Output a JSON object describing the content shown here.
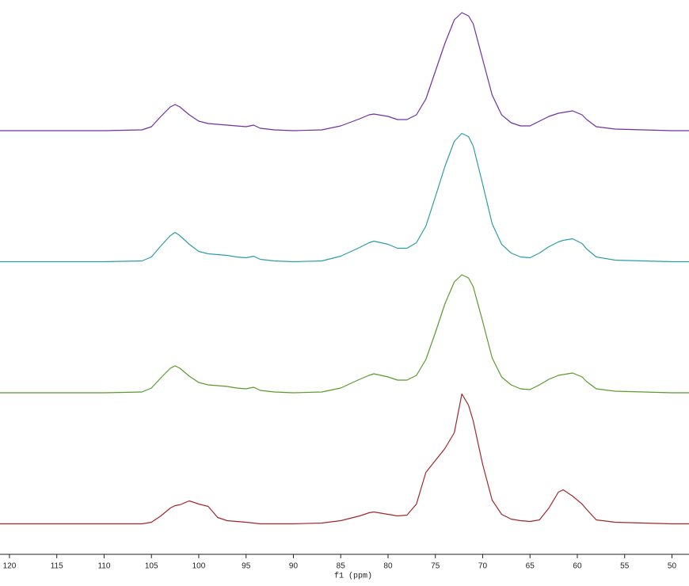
{
  "chart_data": {
    "type": "line",
    "x_label": "f1 (ppm)",
    "xlim": [
      121,
      48.2
    ],
    "xticks": [
      120,
      115,
      110,
      105,
      100,
      95,
      90,
      85,
      80,
      75,
      70,
      65,
      60,
      55,
      50
    ],
    "x": [
      121,
      115,
      110,
      106,
      105,
      104,
      103,
      102.5,
      102,
      101,
      100,
      99,
      98,
      97,
      96,
      95,
      94.2,
      93.5,
      92,
      90,
      87,
      85,
      83,
      82,
      81.5,
      80,
      79,
      78,
      77,
      76,
      75,
      74,
      73,
      72.2,
      71.5,
      71,
      70,
      69,
      68,
      67,
      66,
      65,
      64,
      63,
      62,
      61.5,
      60.5,
      59.5,
      59,
      58,
      56,
      53,
      50,
      48.2
    ],
    "series": [
      {
        "color": "#7030a0",
        "values": [
          0,
          0,
          0,
          1,
          5,
          18,
          30,
          33,
          30,
          20,
          12,
          9,
          8,
          7,
          6,
          5,
          7,
          3,
          1,
          0,
          1,
          6,
          15,
          20,
          21,
          18,
          14,
          14,
          20,
          40,
          75,
          110,
          140,
          149,
          145,
          135,
          90,
          45,
          20,
          10,
          6,
          6,
          12,
          18,
          22,
          23,
          25,
          20,
          14,
          5,
          2,
          1,
          0,
          0
        ]
      },
      {
        "color": "#2e9ca6",
        "values": [
          0,
          0,
          0,
          1,
          6,
          20,
          33,
          37,
          33,
          22,
          13,
          10,
          9,
          8,
          6,
          5,
          7,
          3,
          1,
          0,
          1,
          7,
          18,
          24,
          26,
          22,
          17,
          17,
          24,
          45,
          82,
          120,
          152,
          162,
          158,
          146,
          98,
          48,
          22,
          11,
          6,
          5,
          11,
          19,
          25,
          27,
          29,
          23,
          16,
          6,
          2,
          1,
          0,
          0
        ]
      },
      {
        "color": "#5a9a2e",
        "values": [
          0,
          0,
          0,
          1,
          6,
          19,
          31,
          34,
          31,
          21,
          13,
          10,
          9,
          8,
          6,
          5,
          7,
          3,
          1,
          0,
          1,
          6,
          17,
          22,
          24,
          20,
          16,
          16,
          22,
          42,
          76,
          112,
          140,
          149,
          145,
          134,
          90,
          44,
          20,
          10,
          5,
          4,
          10,
          17,
          22,
          23,
          25,
          20,
          14,
          5,
          2,
          1,
          0,
          0
        ]
      },
      {
        "color": "#a0282c",
        "values": [
          0,
          0,
          0,
          0,
          2,
          10,
          20,
          23,
          24,
          29,
          25,
          22,
          8,
          4,
          3,
          2,
          1,
          0,
          0,
          0,
          1,
          4,
          10,
          14,
          15,
          12,
          10,
          11,
          25,
          65,
          80,
          95,
          115,
          164,
          150,
          130,
          75,
          30,
          12,
          6,
          4,
          3,
          5,
          20,
          40,
          43,
          35,
          25,
          18,
          5,
          2,
          1,
          0,
          0
        ]
      }
    ]
  }
}
